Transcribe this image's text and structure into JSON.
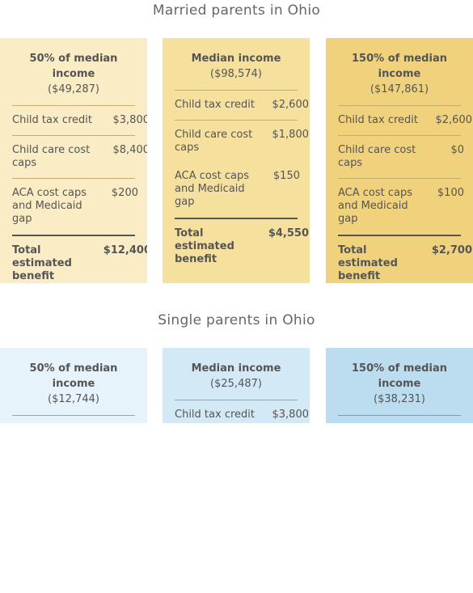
{
  "married": {
    "title": "Married parents in Ohio",
    "cards": [
      {
        "label": "50% of median income",
        "amount": "($49,287)",
        "rows": [
          {
            "label": "Child tax credit",
            "value": "$3,800"
          },
          {
            "label": "Child care cost caps",
            "value": "$8,400"
          },
          {
            "label": "ACA cost caps and Medicaid gap",
            "value": "$200"
          }
        ],
        "total": {
          "label": "Total estimated benefit",
          "value": "$12,400"
        }
      },
      {
        "label": "Median income",
        "amount": "($98,574)",
        "rows": [
          {
            "label": "Child tax credit",
            "value": "$2,600"
          },
          {
            "label": "Child care cost caps",
            "value": "$1,800"
          },
          {
            "label": "ACA cost caps and Medicaid gap",
            "value": "$150"
          }
        ],
        "total": {
          "label": "Total estimated benefit",
          "value": "$4,550"
        }
      },
      {
        "label": "150% of median income",
        "amount": "($147,861)",
        "rows": [
          {
            "label": "Child tax credit",
            "value": "$2,600"
          },
          {
            "label": "Child care cost caps",
            "value": "$0"
          },
          {
            "label": "ACA cost caps and Medicaid gap",
            "value": "$100"
          }
        ],
        "total": {
          "label": "Total estimated benefit",
          "value": "$2,700"
        }
      }
    ]
  },
  "single": {
    "title": "Single parents in Ohio",
    "cards": [
      {
        "label": "50% of median income",
        "amount": "($12,744)",
        "rows": []
      },
      {
        "label": "Median income",
        "amount": "($25,487)",
        "rows": [
          {
            "label": "Child tax credit",
            "value": "$3,800"
          }
        ]
      },
      {
        "label": "150% of median income",
        "amount": "($38,231)",
        "rows": []
      }
    ]
  },
  "colors": {
    "married": [
      "#faecc4",
      "#f6e09e",
      "#f1d27c"
    ],
    "single": [
      "#e7f3fb",
      "#d4e9f6",
      "#bcdcf0"
    ],
    "text": "#555555"
  }
}
